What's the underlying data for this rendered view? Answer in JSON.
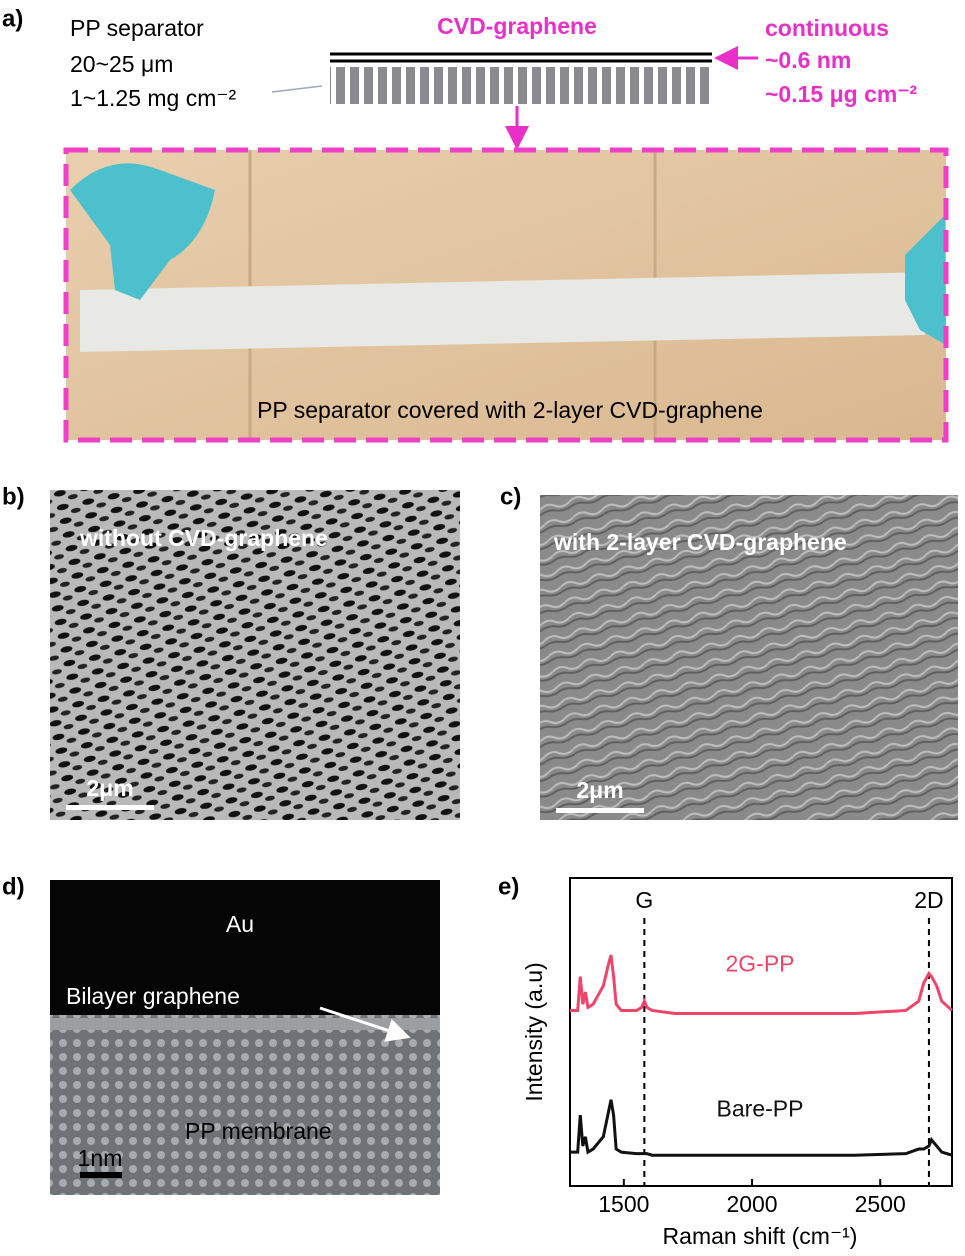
{
  "figure": {
    "a": {
      "label": "a)",
      "separator": "PP separator",
      "thickness": "20~25 μm",
      "loading": "1~1.25 mg cm⁻²",
      "graphene": "CVD-graphene",
      "continuous": "continuous",
      "graphene_thickness": "~0.6 nm",
      "graphene_loading": "~0.15 μg cm⁻²",
      "caption": "PP separator covered with 2-layer CVD-graphene"
    },
    "b": {
      "label": "b)",
      "caption": "without CVD-graphene",
      "scale": "2μm"
    },
    "c": {
      "label": "c)",
      "caption": "with 2-layer CVD-graphene",
      "scale": "2μm"
    },
    "d": {
      "label": "d)",
      "top": "Au",
      "middle": "Bilayer graphene",
      "bottom": "PP membrane",
      "scale": "1nm"
    },
    "e": {
      "label": "e)"
    }
  },
  "chart_data": {
    "type": "line",
    "x_label": "Raman shift (cm⁻¹)",
    "y_label": "Intensity (a.u)",
    "x": [
      1290,
      1320,
      1330,
      1340,
      1350,
      1360,
      1380,
      1420,
      1440,
      1450,
      1460,
      1470,
      1490,
      1550,
      1570,
      1580,
      1590,
      1610,
      1700,
      2000,
      2400,
      2600,
      2650,
      2670,
      2690,
      2700,
      2720,
      2740,
      2780
    ],
    "series": [
      {
        "name": "2G-PP",
        "color": "#f0456a",
        "values": [
          5.7,
          5.7,
          6.8,
          5.9,
          6.3,
          5.8,
          5.9,
          6.5,
          7.2,
          7.5,
          6.8,
          5.9,
          5.7,
          5.7,
          5.8,
          6.0,
          5.8,
          5.7,
          5.6,
          5.6,
          5.6,
          5.7,
          6.0,
          6.6,
          6.9,
          6.8,
          6.5,
          6.0,
          5.7
        ]
      },
      {
        "name": "Bare-PP",
        "color": "#111111",
        "values": [
          1.1,
          1.1,
          2.3,
          1.3,
          1.6,
          1.1,
          1.2,
          1.6,
          2.4,
          2.8,
          2.3,
          1.2,
          1.1,
          1.05,
          1.05,
          1.05,
          1.05,
          1.0,
          1.0,
          1.0,
          1.0,
          1.05,
          1.2,
          1.2,
          1.3,
          1.5,
          1.3,
          1.1,
          1.0
        ]
      }
    ],
    "xlim": [
      1290,
      2780
    ],
    "ylim": [
      0,
      10
    ],
    "xticks": [
      1500,
      2000,
      2500
    ],
    "vlines": [
      {
        "value": 1580,
        "label": "G"
      },
      {
        "value": 2690,
        "label": "2D"
      }
    ]
  }
}
